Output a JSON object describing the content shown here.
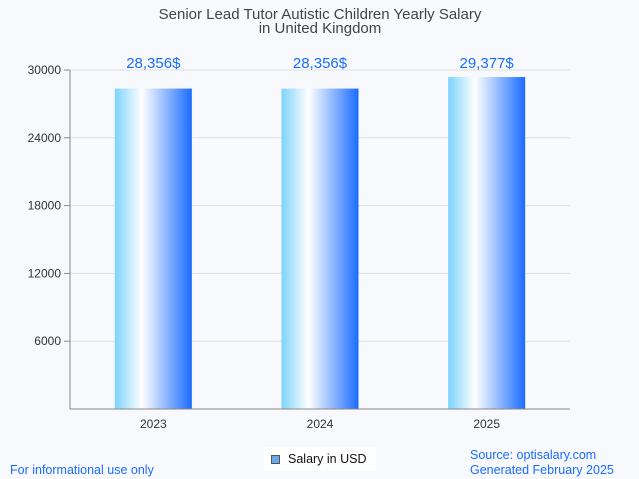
{
  "chart_data": {
    "type": "bar",
    "title": "Senior Lead Tutor Autistic Children Yearly Salary",
    "subtitle": "in United Kingdom",
    "categories": [
      "2023",
      "2024",
      "2025"
    ],
    "series": [
      {
        "name": "Salary in USD",
        "values": [
          28356,
          28356,
          29377
        ]
      }
    ],
    "data_labels": [
      "28,356$",
      "28,356$",
      "29,377$"
    ],
    "yticks": [
      6000,
      12000,
      18000,
      24000,
      30000
    ],
    "ylim": [
      0,
      30000
    ],
    "xlabel": "",
    "ylabel": "",
    "grid": true,
    "legend": "bottom-center"
  },
  "footer": {
    "disclaimer": "For informational use only",
    "source": "Source: optisalary.com",
    "generated": "Generated February 2025"
  },
  "colors": {
    "label": "#1a6cff",
    "bar_dark": "#1a6cff",
    "bar_light": "#7dd3fc"
  }
}
